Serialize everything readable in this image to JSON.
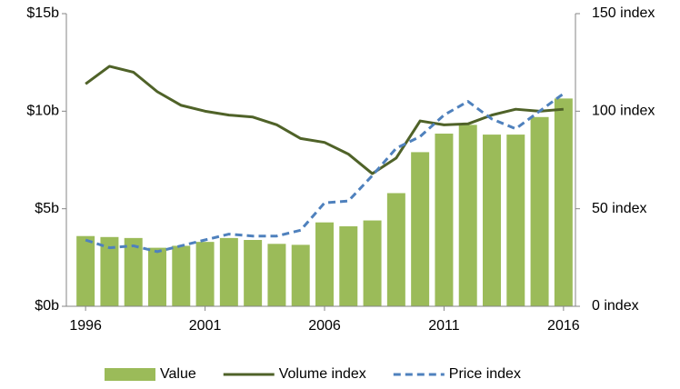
{
  "chart_data": {
    "type": "bar-line",
    "categories": [
      "1996",
      null,
      null,
      null,
      null,
      "2001",
      null,
      null,
      null,
      null,
      "2006",
      null,
      null,
      null,
      null,
      "2011",
      null,
      null,
      null,
      null,
      "2016"
    ],
    "series": [
      {
        "name": "Value",
        "type": "bar",
        "color": "#9bbb59",
        "axis": "y",
        "values": [
          3.6,
          3.55,
          3.5,
          3.0,
          3.1,
          3.3,
          3.5,
          3.4,
          3.2,
          3.15,
          4.3,
          4.1,
          4.4,
          5.8,
          7.9,
          8.85,
          9.3,
          8.8,
          8.8,
          9.7,
          10.65
        ]
      },
      {
        "name": "Volume index",
        "type": "line",
        "color": "#4f6228",
        "axis": "y2",
        "values": [
          114,
          123,
          120,
          110,
          103,
          100,
          98,
          97,
          93,
          86,
          84,
          78,
          68,
          76,
          95,
          93,
          93.5,
          98,
          101,
          100,
          101
        ]
      },
      {
        "name": "Price index",
        "type": "line",
        "dashed": true,
        "color": "#4f81bd",
        "axis": "y2",
        "values": [
          34,
          30,
          31,
          28,
          31,
          34,
          37,
          36,
          36,
          39,
          53,
          54,
          67,
          81,
          87,
          98,
          105,
          96,
          91,
          100,
          109
        ]
      }
    ],
    "ylim": [
      0,
      15
    ],
    "yticks": [
      {
        "value": 0,
        "label": "$0b"
      },
      {
        "value": 5,
        "label": "$5b"
      },
      {
        "value": 10,
        "label": "$10b"
      },
      {
        "value": 15,
        "label": "$15b"
      }
    ],
    "y2lim": [
      0,
      150
    ],
    "y2ticks": [
      {
        "value": 0,
        "label": "0 index"
      },
      {
        "value": 50,
        "label": "50 index"
      },
      {
        "value": 100,
        "label": "100 index"
      },
      {
        "value": 150,
        "label": "150 index"
      }
    ],
    "legend": "bottom"
  }
}
